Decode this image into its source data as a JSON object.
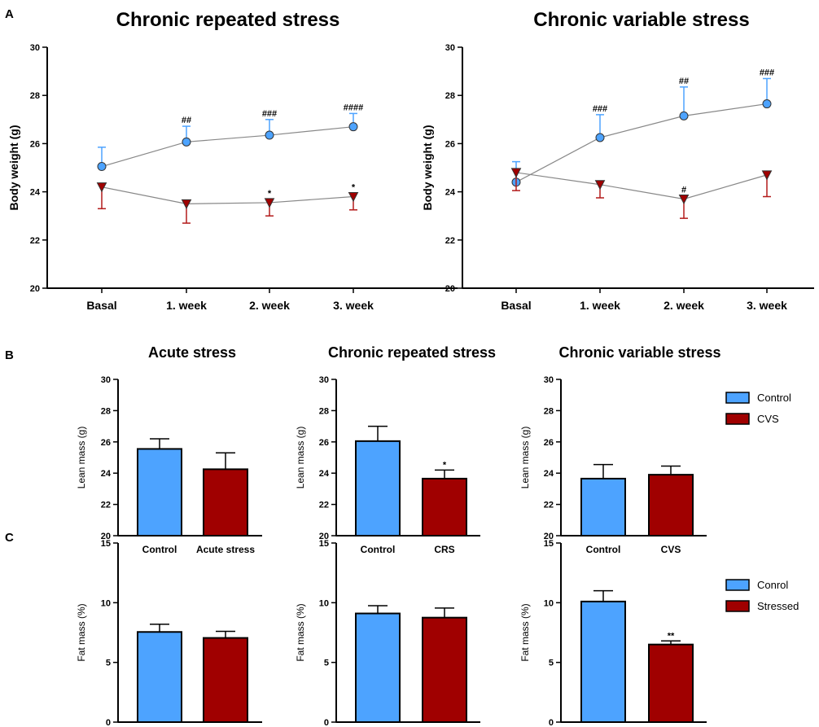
{
  "panel_labels": [
    "A",
    "B",
    "C"
  ],
  "legends": [
    {
      "entries": [
        {
          "label": "Control",
          "color": "#4da3ff"
        },
        {
          "label": "CVS",
          "color": "#a00000"
        }
      ]
    },
    {
      "entries": [
        {
          "label": "Conrol",
          "color": "#4da3ff"
        },
        {
          "label": "Stressed",
          "color": "#a00000"
        }
      ]
    }
  ],
  "colors": {
    "control": "#4da3ff",
    "stressed": "#a00000",
    "line": "#888888",
    "control_error": "#4da3ff",
    "stressed_error": "#b31b1b"
  },
  "chart_data": [
    {
      "type": "line",
      "title": "Chronic repeated stress",
      "ylabel": "Body weight (g)",
      "categories": [
        "Basal",
        "1. week",
        "2. week",
        "3. week"
      ],
      "ylim": [
        20,
        30
      ],
      "yticks": [
        20,
        22,
        24,
        26,
        28,
        30
      ],
      "series": [
        {
          "marker": "circle",
          "color": "#4da3ff",
          "values": [
            25.05,
            26.07,
            26.35,
            26.7
          ],
          "error": [
            0.8,
            0.65,
            0.65,
            0.55
          ],
          "error_dir": "up",
          "annotations": [
            "",
            "##",
            "###",
            "####"
          ]
        },
        {
          "marker": "triangle-down",
          "color": "#a00000",
          "values": [
            24.2,
            23.5,
            23.55,
            23.8
          ],
          "error": [
            0.9,
            0.8,
            0.55,
            0.55
          ],
          "error_dir": "down",
          "annotations": [
            "",
            "",
            "*",
            "*"
          ]
        }
      ]
    },
    {
      "type": "line",
      "title": "Chronic variable stress",
      "ylabel": "Body weight (g)",
      "categories": [
        "Basal",
        "1. week",
        "2. week",
        "3. week"
      ],
      "ylim": [
        20,
        30
      ],
      "yticks": [
        20,
        22,
        24,
        26,
        28,
        30
      ],
      "series": [
        {
          "marker": "circle",
          "color": "#4da3ff",
          "values": [
            24.4,
            26.25,
            27.15,
            27.65
          ],
          "error": [
            0.85,
            0.95,
            1.2,
            1.05
          ],
          "error_dir": "up",
          "annotations": [
            "",
            "###",
            "##",
            "###"
          ]
        },
        {
          "marker": "triangle-down",
          "color": "#a00000",
          "values": [
            24.8,
            24.3,
            23.7,
            24.7
          ],
          "error": [
            0.75,
            0.55,
            0.8,
            0.9
          ],
          "error_dir": "down",
          "annotations": [
            "",
            "",
            "#",
            ""
          ]
        }
      ]
    },
    {
      "type": "bar",
      "title": "Acute stress",
      "ylabel": "Lean mass (g)",
      "categories": [
        "Control",
        "Acute stress"
      ],
      "values": [
        25.55,
        24.25
      ],
      "error": [
        0.65,
        1.05
      ],
      "annotations": [
        "",
        ""
      ],
      "ylim": [
        20,
        30
      ],
      "yticks": [
        20,
        22,
        24,
        26,
        28,
        30
      ]
    },
    {
      "type": "bar",
      "title": "Chronic repeated stress",
      "ylabel": "Lean mass (g)",
      "categories": [
        "Control",
        "CRS"
      ],
      "values": [
        26.05,
        23.65
      ],
      "error": [
        0.95,
        0.55
      ],
      "annotations": [
        "",
        "*"
      ],
      "ylim": [
        20,
        30
      ],
      "yticks": [
        20,
        22,
        24,
        26,
        28,
        30
      ]
    },
    {
      "type": "bar",
      "title": "Chronic variable stress",
      "ylabel": "Lean mass (g)",
      "categories": [
        "Control",
        "CVS"
      ],
      "values": [
        23.65,
        23.9
      ],
      "error": [
        0.9,
        0.55
      ],
      "annotations": [
        "",
        ""
      ],
      "ylim": [
        20,
        30
      ],
      "yticks": [
        20,
        22,
        24,
        26,
        28,
        30
      ]
    },
    {
      "type": "bar",
      "title": "",
      "ylabel": "Fat mass (%)",
      "categories": [
        "",
        ""
      ],
      "values": [
        7.55,
        7.05
      ],
      "error": [
        0.65,
        0.55
      ],
      "annotations": [
        "",
        ""
      ],
      "ylim": [
        0,
        15
      ],
      "yticks": [
        0,
        5,
        10,
        15
      ]
    },
    {
      "type": "bar",
      "title": "",
      "ylabel": "Fat mass (%)",
      "categories": [
        "",
        ""
      ],
      "values": [
        9.1,
        8.75
      ],
      "error": [
        0.65,
        0.8
      ],
      "annotations": [
        "",
        ""
      ],
      "ylim": [
        0,
        15
      ],
      "yticks": [
        0,
        5,
        10,
        15
      ]
    },
    {
      "type": "bar",
      "title": "",
      "ylabel": "Fat mass (%)",
      "categories": [
        "",
        ""
      ],
      "values": [
        10.1,
        6.5
      ],
      "error": [
        0.9,
        0.3
      ],
      "annotations": [
        "",
        "**"
      ],
      "ylim": [
        0,
        15
      ],
      "yticks": [
        0,
        5,
        10,
        15
      ]
    }
  ]
}
